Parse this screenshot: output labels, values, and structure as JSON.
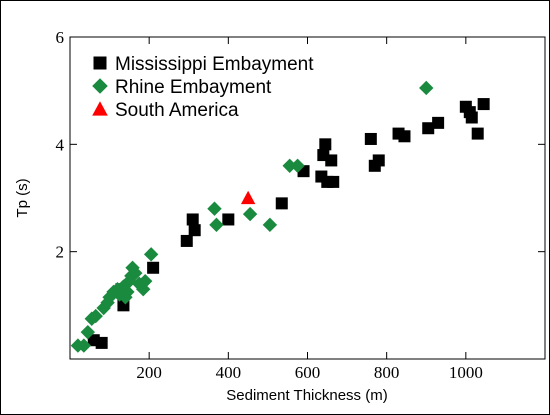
{
  "chart_data": {
    "type": "scatter",
    "title": "",
    "xlabel": "Sediment Thickness (m)",
    "ylabel": "Tp (s)",
    "xlim": [
      0,
      1200
    ],
    "ylim": [
      0,
      6
    ],
    "x_ticks": [
      200,
      400,
      600,
      800,
      1000
    ],
    "y_ticks": [
      2,
      4,
      6
    ],
    "grid": false,
    "legend_placement": "top-left",
    "series": [
      {
        "name": "Mississippi Embayment",
        "marker": "square",
        "color": "#000000",
        "points": [
          [
            60,
            0.35
          ],
          [
            80,
            0.3
          ],
          [
            130,
            1.3
          ],
          [
            135,
            1.0
          ],
          [
            210,
            1.7
          ],
          [
            295,
            2.2
          ],
          [
            310,
            2.6
          ],
          [
            315,
            2.4
          ],
          [
            400,
            2.6
          ],
          [
            535,
            2.9
          ],
          [
            590,
            3.5
          ],
          [
            635,
            3.4
          ],
          [
            640,
            3.8
          ],
          [
            645,
            4.0
          ],
          [
            650,
            3.3
          ],
          [
            660,
            3.7
          ],
          [
            665,
            3.3
          ],
          [
            760,
            4.1
          ],
          [
            770,
            3.6
          ],
          [
            780,
            3.7
          ],
          [
            830,
            4.2
          ],
          [
            845,
            4.15
          ],
          [
            905,
            4.3
          ],
          [
            930,
            4.4
          ],
          [
            1000,
            4.7
          ],
          [
            1010,
            4.6
          ],
          [
            1015,
            4.5
          ],
          [
            1030,
            4.2
          ],
          [
            1045,
            4.75
          ]
        ]
      },
      {
        "name": "Rhine Embayment",
        "marker": "diamond",
        "color": "#1a8a3f",
        "points": [
          [
            20,
            0.25
          ],
          [
            35,
            0.25
          ],
          [
            45,
            0.5
          ],
          [
            55,
            0.75
          ],
          [
            65,
            0.8
          ],
          [
            85,
            0.95
          ],
          [
            95,
            1.05
          ],
          [
            100,
            1.15
          ],
          [
            110,
            1.25
          ],
          [
            120,
            1.3
          ],
          [
            125,
            1.2
          ],
          [
            135,
            1.35
          ],
          [
            140,
            1.15
          ],
          [
            145,
            1.25
          ],
          [
            150,
            1.45
          ],
          [
            155,
            1.55
          ],
          [
            158,
            1.7
          ],
          [
            165,
            1.6
          ],
          [
            175,
            1.4
          ],
          [
            185,
            1.3
          ],
          [
            190,
            1.45
          ],
          [
            205,
            1.95
          ],
          [
            365,
            2.8
          ],
          [
            370,
            2.5
          ],
          [
            455,
            2.7
          ],
          [
            505,
            2.5
          ],
          [
            555,
            3.6
          ],
          [
            575,
            3.6
          ],
          [
            900,
            5.05
          ]
        ]
      },
      {
        "name": "South America",
        "marker": "triangle",
        "color": "#ff0000",
        "points": [
          [
            450,
            3.0
          ]
        ]
      }
    ]
  }
}
